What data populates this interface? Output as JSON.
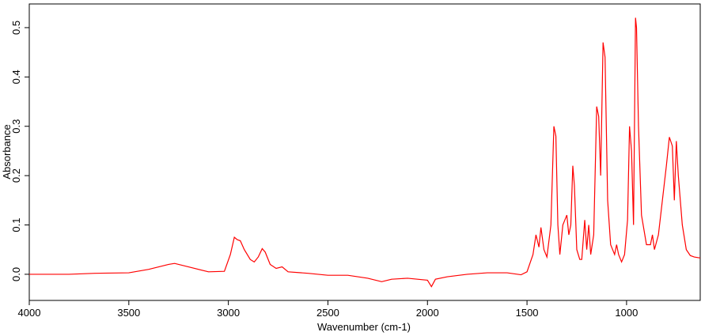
{
  "chart_data": {
    "type": "line",
    "xlabel": "Wavenumber (cm-1)",
    "ylabel": "Absorbance",
    "x": [
      4000,
      3800,
      3670,
      3500,
      3400,
      3300,
      3270,
      3200,
      3100,
      3020,
      2990,
      2970,
      2955,
      2940,
      2920,
      2890,
      2870,
      2850,
      2830,
      2815,
      2790,
      2760,
      2730,
      2700,
      2600,
      2500,
      2400,
      2300,
      2230,
      2200,
      2180,
      2100,
      2000,
      1980,
      1960,
      1900,
      1800,
      1700,
      1600,
      1530,
      1500,
      1470,
      1455,
      1440,
      1430,
      1415,
      1400,
      1380,
      1365,
      1355,
      1345,
      1335,
      1320,
      1310,
      1300,
      1290,
      1280,
      1270,
      1262,
      1250,
      1235,
      1225,
      1210,
      1200,
      1190,
      1180,
      1165,
      1150,
      1140,
      1130,
      1118,
      1108,
      1095,
      1080,
      1060,
      1050,
      1040,
      1025,
      1010,
      995,
      985,
      975,
      965,
      955,
      950,
      940,
      925,
      900,
      880,
      870,
      860,
      840,
      820,
      800,
      785,
      770,
      760,
      750,
      740,
      720,
      700,
      680,
      660,
      630
    ],
    "series": [
      {
        "color": "#ff0000",
        "values": [
          0.0,
          0.0,
          0.002,
          0.003,
          0.01,
          0.02,
          0.022,
          0.015,
          0.005,
          0.006,
          0.04,
          0.075,
          0.07,
          0.068,
          0.05,
          0.03,
          0.025,
          0.035,
          0.052,
          0.045,
          0.02,
          0.012,
          0.015,
          0.005,
          0.002,
          -0.002,
          -0.002,
          -0.008,
          -0.015,
          -0.012,
          -0.01,
          -0.008,
          -0.012,
          -0.025,
          -0.01,
          -0.005,
          0.0,
          0.003,
          0.003,
          -0.001,
          0.005,
          0.04,
          0.08,
          0.055,
          0.095,
          0.05,
          0.035,
          0.1,
          0.3,
          0.28,
          0.1,
          0.04,
          0.1,
          0.11,
          0.12,
          0.08,
          0.1,
          0.22,
          0.18,
          0.05,
          0.03,
          0.03,
          0.11,
          0.05,
          0.1,
          0.04,
          0.08,
          0.34,
          0.32,
          0.2,
          0.47,
          0.44,
          0.15,
          0.06,
          0.04,
          0.06,
          0.04,
          0.025,
          0.04,
          0.11,
          0.3,
          0.25,
          0.1,
          0.52,
          0.5,
          0.3,
          0.12,
          0.06,
          0.06,
          0.08,
          0.05,
          0.08,
          0.15,
          0.22,
          0.278,
          0.26,
          0.15,
          0.27,
          0.2,
          0.1,
          0.05,
          0.038,
          0.035,
          0.033
        ]
      }
    ],
    "xlim": [
      4000,
      630
    ],
    "xticks": [
      4000,
      3500,
      3000,
      2500,
      2000,
      1500,
      1000
    ],
    "ylim": [
      -0.053,
      0.548
    ],
    "yticks": [
      {
        "value": 0,
        "label": "0.0"
      },
      0.1,
      0.2,
      0.3,
      0.4,
      0.5
    ]
  }
}
